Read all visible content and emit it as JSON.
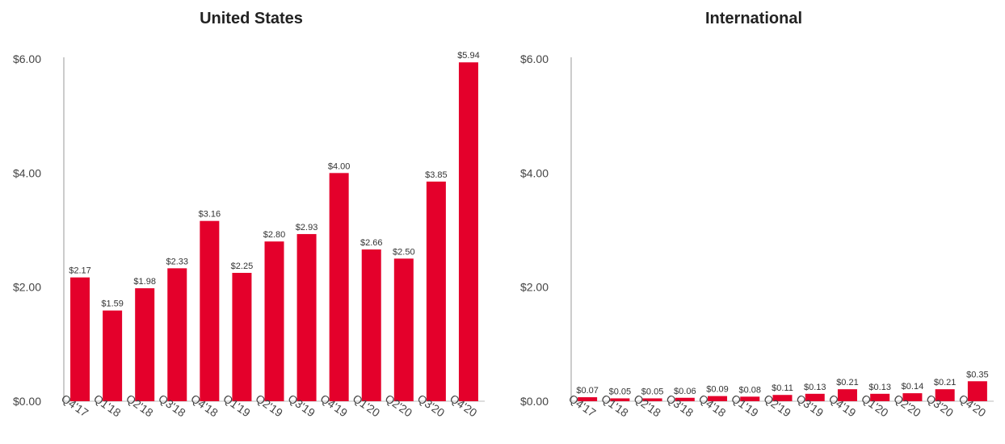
{
  "colors": {
    "bar": "#e4002b",
    "axis": "#bbbbbb"
  },
  "chart_data": [
    {
      "type": "bar",
      "title": "United States",
      "categories": [
        "Q4'17",
        "Q1'18",
        "Q2'18",
        "Q3'18",
        "Q4'18",
        "Q1'19",
        "Q2'19",
        "Q3'19",
        "Q4'19",
        "Q1'20",
        "Q2'20",
        "Q3'20",
        "Q4'20"
      ],
      "values": [
        2.17,
        1.59,
        1.98,
        2.33,
        3.16,
        2.25,
        2.8,
        2.93,
        4.0,
        2.66,
        2.5,
        3.85,
        5.94
      ],
      "value_labels": [
        "$2.17",
        "$1.59",
        "$1.98",
        "$2.33",
        "$3.16",
        "$2.25",
        "$2.80",
        "$2.93",
        "$4.00",
        "$2.66",
        "$2.50",
        "$3.85",
        "$5.94"
      ],
      "yticks": [
        "$0.00",
        "$2.00",
        "$4.00",
        "$6.00"
      ],
      "ytick_values": [
        0,
        2,
        4,
        6
      ],
      "ylim": [
        0,
        6
      ],
      "grid": false
    },
    {
      "type": "bar",
      "title": "International",
      "categories": [
        "Q4'17",
        "Q1'18",
        "Q2'18",
        "Q3'18",
        "Q4'18",
        "Q1'19",
        "Q2'19",
        "Q3'19",
        "Q4'19",
        "Q1'20",
        "Q2'20",
        "Q3'20",
        "Q4'20"
      ],
      "values": [
        0.07,
        0.05,
        0.05,
        0.06,
        0.09,
        0.08,
        0.11,
        0.13,
        0.21,
        0.13,
        0.14,
        0.21,
        0.35
      ],
      "value_labels": [
        "$0.07",
        "$0.05",
        "$0.05",
        "$0.06",
        "$0.09",
        "$0.08",
        "$0.11",
        "$0.13",
        "$0.21",
        "$0.13",
        "$0.14",
        "$0.21",
        "$0.35"
      ],
      "yticks": [
        "$0.00",
        "$2.00",
        "$4.00",
        "$6.00"
      ],
      "ytick_values": [
        0,
        2,
        4,
        6
      ],
      "ylim": [
        0,
        6
      ],
      "grid": false
    }
  ]
}
